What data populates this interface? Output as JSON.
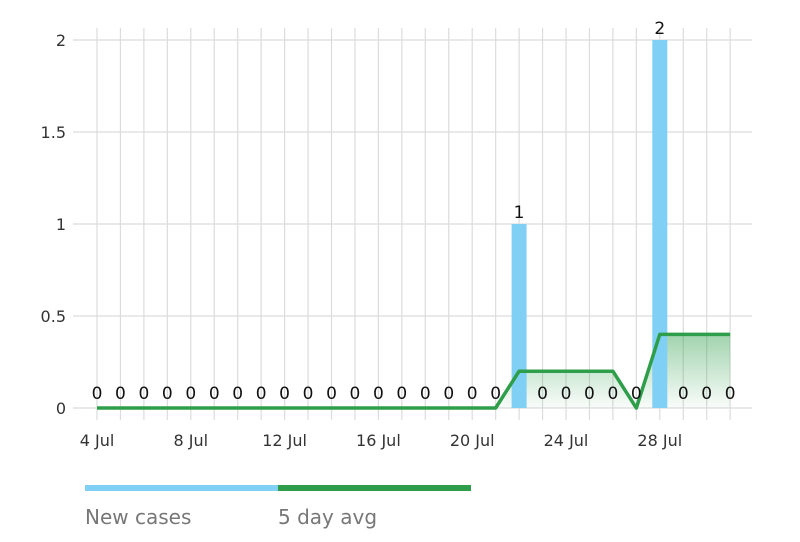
{
  "chart_data": {
    "type": "bar",
    "x": [
      "4 Jul",
      "5 Jul",
      "6 Jul",
      "7 Jul",
      "8 Jul",
      "9 Jul",
      "10 Jul",
      "11 Jul",
      "12 Jul",
      "13 Jul",
      "14 Jul",
      "15 Jul",
      "16 Jul",
      "17 Jul",
      "18 Jul",
      "19 Jul",
      "20 Jul",
      "21 Jul",
      "22 Jul",
      "23 Jul",
      "24 Jul",
      "25 Jul",
      "26 Jul",
      "27 Jul",
      "28 Jul",
      "29 Jul",
      "30 Jul",
      "31 Jul"
    ],
    "x_tick_labels": [
      "4 Jul",
      "8 Jul",
      "12 Jul",
      "16 Jul",
      "20 Jul",
      "24 Jul",
      "28 Jul"
    ],
    "y_tick_labels": [
      "0",
      "0.5",
      "1",
      "1.5",
      "2"
    ],
    "ylim": [
      0,
      2
    ],
    "grid": true,
    "series": [
      {
        "name": "New cases",
        "type": "bar",
        "color": "#7fd0f4",
        "values": [
          0,
          0,
          0,
          0,
          0,
          0,
          0,
          0,
          0,
          0,
          0,
          0,
          0,
          0,
          0,
          0,
          0,
          0,
          1,
          0,
          0,
          0,
          0,
          0,
          2,
          0,
          0,
          0
        ],
        "labels": [
          "0",
          "0",
          "0",
          "0",
          "0",
          "0",
          "0",
          "0",
          "0",
          "0",
          "0",
          "0",
          "0",
          "0",
          "0",
          "0",
          "0",
          "0",
          "1",
          "0",
          "0",
          "0",
          "0",
          "0",
          "2",
          "0",
          "0",
          "0"
        ]
      },
      {
        "name": "5 day avg",
        "type": "line",
        "color": "#2e9e4a",
        "values": [
          0,
          0,
          0,
          0,
          0,
          0,
          0,
          0,
          0,
          0,
          0,
          0,
          0,
          0,
          0,
          0,
          0,
          0,
          0.2,
          0.2,
          0.2,
          0.2,
          0.2,
          0,
          0.4,
          0.4,
          0.4,
          0.4
        ]
      }
    ],
    "legend": "bottom-left"
  }
}
